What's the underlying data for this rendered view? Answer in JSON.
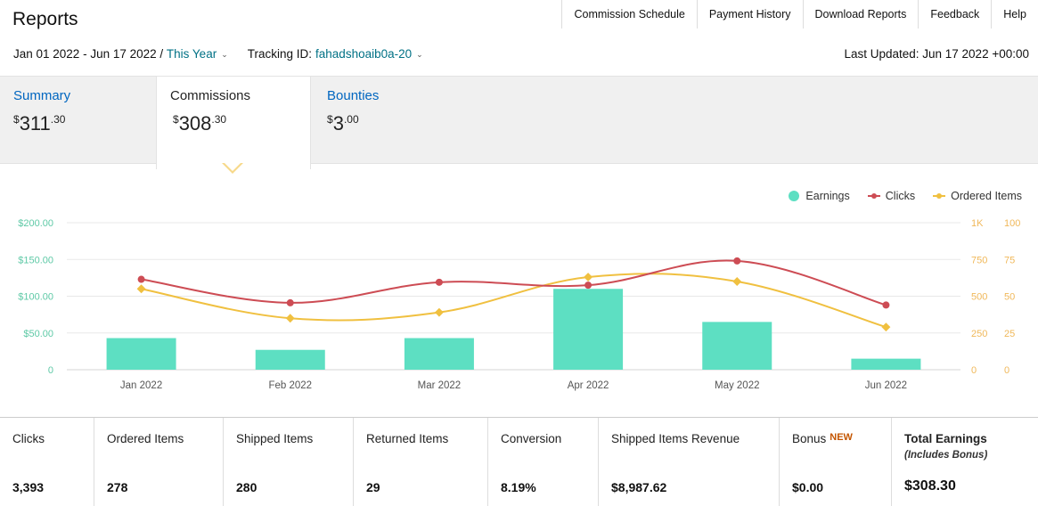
{
  "header": {
    "title": "Reports",
    "nav": [
      "Commission Schedule",
      "Payment History",
      "Download Reports",
      "Feedback",
      "Help"
    ]
  },
  "filters": {
    "date_range": "Jan 01 2022 - Jun 17 2022",
    "separator": " / ",
    "period": "This Year",
    "tracking_label": "Tracking ID:",
    "tracking_id": "fahadshoaib0a-20",
    "last_updated": "Last Updated: Jun 17 2022 +00:00"
  },
  "tabs": {
    "summary": {
      "label": "Summary",
      "currency": "$",
      "amount_main": "311",
      "amount_cents": ".30"
    },
    "commissions": {
      "label": "Commissions",
      "currency": "$",
      "amount_main": "308",
      "amount_cents": ".30"
    },
    "bounties": {
      "label": "Bounties",
      "currency": "$",
      "amount_main": "3",
      "amount_cents": ".00"
    }
  },
  "legend": {
    "earnings": "Earnings",
    "clicks": "Clicks",
    "ordered_items": "Ordered Items"
  },
  "colors": {
    "earnings": "#5ddfc2",
    "clicks": "#cd4c54",
    "ordered_items": "#f0c040",
    "left_axis_text": "#5ec9a6",
    "right_axis_text": "#f0b85a"
  },
  "chart_data": {
    "type": "bar",
    "categories": [
      "Jan 2022",
      "Feb 2022",
      "Mar 2022",
      "Apr 2022",
      "May 2022",
      "Jun 2022"
    ],
    "series": [
      {
        "name": "Earnings",
        "type": "bar",
        "axis": "left",
        "values": [
          43,
          27,
          43,
          110,
          65,
          15
        ]
      },
      {
        "name": "Clicks",
        "type": "line",
        "axis": "right-1",
        "values": [
          615,
          455,
          595,
          575,
          740,
          440
        ]
      },
      {
        "name": "Ordered Items",
        "type": "line",
        "axis": "right-2",
        "values": [
          55,
          35,
          39,
          63,
          60,
          29
        ]
      }
    ],
    "left_axis": {
      "ticks": [
        "0",
        "$50.00",
        "$100.00",
        "$150.00",
        "$200.00"
      ],
      "range": [
        0,
        200
      ]
    },
    "right_axis_1": {
      "ticks": [
        "0",
        "250",
        "500",
        "750",
        "1K"
      ],
      "range": [
        0,
        1000
      ]
    },
    "right_axis_2": {
      "ticks": [
        "0",
        "25",
        "50",
        "75",
        "100"
      ],
      "range": [
        0,
        100
      ]
    },
    "grid": true,
    "legend_position": "top-right"
  },
  "stats": [
    {
      "label": "Clicks",
      "value": "3,393"
    },
    {
      "label": "Ordered Items",
      "value": "278"
    },
    {
      "label": "Shipped Items",
      "value": "280"
    },
    {
      "label": "Returned Items",
      "value": "29"
    },
    {
      "label": "Conversion",
      "value": "8.19%"
    },
    {
      "label": "Shipped Items Revenue",
      "value": "$8,987.62"
    },
    {
      "label": "Bonus",
      "badge": "NEW",
      "value": "$0.00"
    },
    {
      "label": "Total Earnings",
      "note": "(Includes Bonus)",
      "value": "$308.30"
    }
  ]
}
